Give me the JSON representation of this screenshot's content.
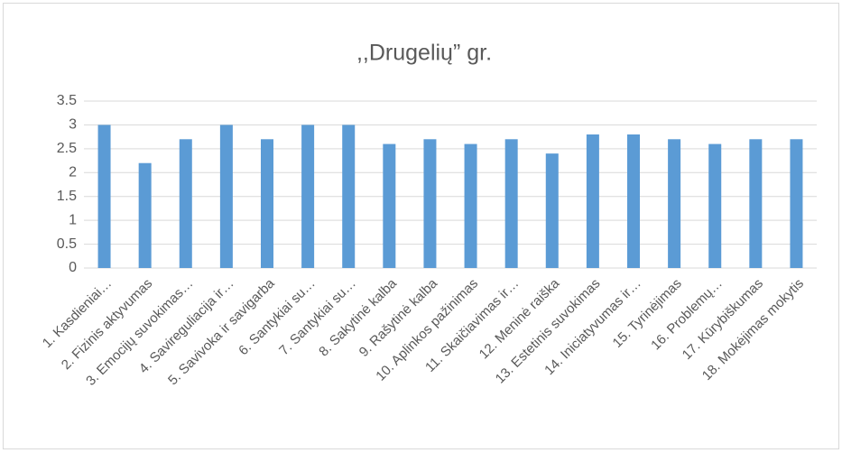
{
  "chart_data": {
    "type": "bar",
    "title": ",,Drugelių” gr.",
    "categories": [
      "1. Kasdieniai…",
      "2. Fizinis aktyvumas",
      "3. Emocijų suvokimas…",
      "4. Savireguliacija ir…",
      "5. Savivoka ir savigarba",
      "6. Santykiai su…",
      "7. Santykiai su…",
      "8. Sakytinė kalba",
      "9. Rašytinė kalba",
      "10. Aplinkos pažinimas",
      "11. Skaičiavimas ir…",
      "12. Meninė raiška",
      "13. Estetinis suvokimas",
      "14. Iniciatyvumas ir…",
      "15. Tyrinėjimas",
      "16. Problemų…",
      "17. Kūrybiškumas",
      "18. Mokėjimas mokytis"
    ],
    "values": [
      3,
      2.2,
      2.7,
      3,
      2.7,
      3,
      3,
      2.6,
      2.7,
      2.6,
      2.7,
      2.4,
      2.8,
      2.8,
      2.7,
      2.6,
      2.7,
      2.7
    ],
    "color": "#5b9bd5",
    "ylim": [
      0,
      3.5
    ],
    "yticks": [
      0,
      0.5,
      1,
      1.5,
      2,
      2.5,
      3,
      3.5
    ],
    "grid": true
  }
}
